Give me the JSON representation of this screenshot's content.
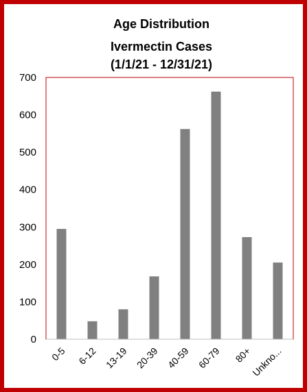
{
  "chart_data": {
    "type": "bar",
    "title_lines": [
      "Age Distribution",
      "Ivermectin Cases",
      "(1/1/21 - 12/31/21)"
    ],
    "categories": [
      "0-5",
      "6-12",
      "13-19",
      "20-39",
      "40-59",
      "60-79",
      "80+",
      "Unkno..."
    ],
    "values": [
      295,
      48,
      80,
      168,
      562,
      662,
      273,
      205
    ],
    "y_ticks": [
      "0",
      "100",
      "200",
      "300",
      "400",
      "500",
      "600",
      "700"
    ],
    "ylim": [
      0,
      700
    ],
    "xlabel": "",
    "ylabel": "",
    "grid": false,
    "legend": "none",
    "colors": {
      "bar": "#808080",
      "plot_border": "#c00000",
      "frame_border": "#c00000"
    }
  }
}
